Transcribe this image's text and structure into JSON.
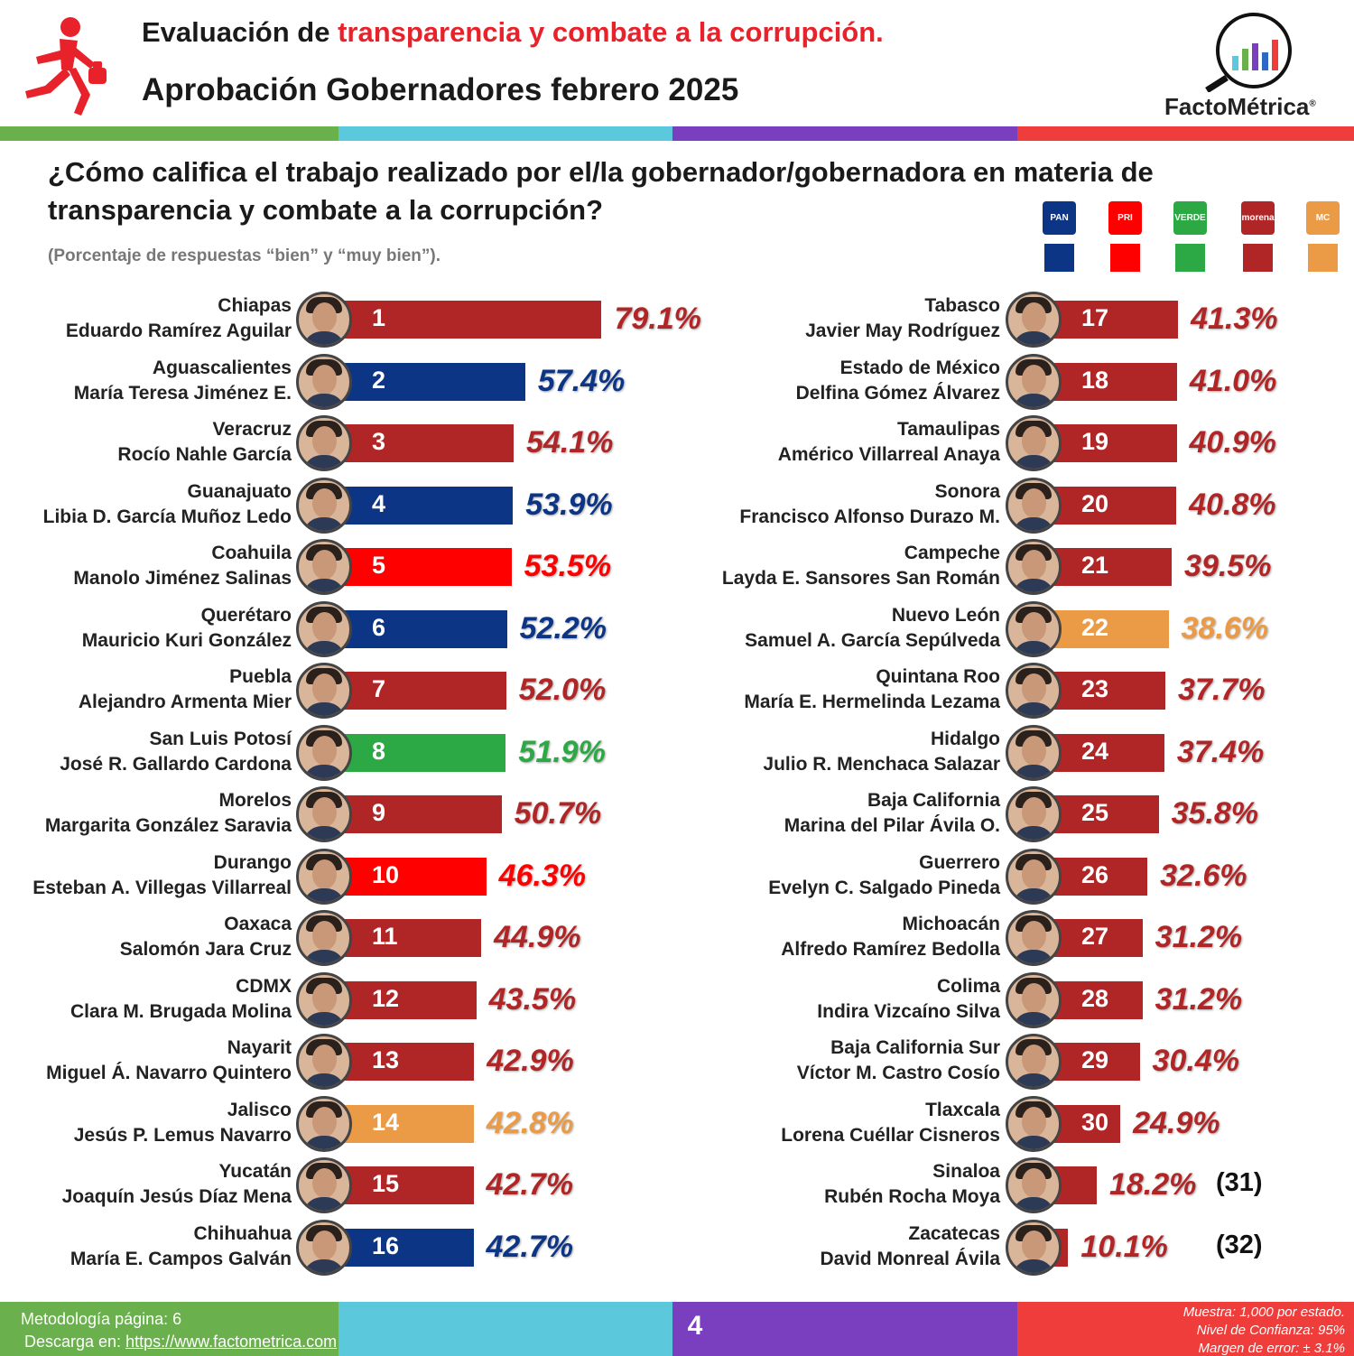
{
  "header": {
    "title_prefix": "Evaluación de ",
    "title_highlight": "transparencia y combate a la corrupción.",
    "subtitle": "Aprobación Gobernadores febrero 2025",
    "brand": "FactoMétrica",
    "brand_mark": "®"
  },
  "question": "¿Cómo califica el trabajo realizado por el/la gobernador/gobernadora en materia de transparencia y combate a la corrupción?",
  "note": "(Porcentaje de respuestas “bien” y “muy bien”).",
  "parties": [
    {
      "logo_text": "PAN",
      "color": "#0d3585"
    },
    {
      "logo_text": "PRI",
      "color": "#fe0000"
    },
    {
      "logo_text": "VERDE",
      "color": "#2ca844"
    },
    {
      "logo_text": "morena",
      "color": "#b02627"
    },
    {
      "logo_text": "MC",
      "color": "#eb9a45"
    }
  ],
  "chart_data": {
    "type": "bar",
    "orientation": "horizontal",
    "unit": "%",
    "items": [
      {
        "rank": "1",
        "state": "Chiapas",
        "governor": "Eduardo Ramírez Aguilar",
        "value": 79.1,
        "label": "79.1%",
        "party": "morena",
        "color": "#b02627"
      },
      {
        "rank": "2",
        "state": "Aguascalientes",
        "governor": "María Teresa Jiménez E.",
        "value": 57.4,
        "label": "57.4%",
        "party": "PAN",
        "color": "#0d3585"
      },
      {
        "rank": "3",
        "state": "Veracruz",
        "governor": "Rocío Nahle García",
        "value": 54.1,
        "label": "54.1%",
        "party": "morena",
        "color": "#b02627"
      },
      {
        "rank": "4",
        "state": "Guanajuato",
        "governor": "Libia D. García Muñoz Ledo",
        "value": 53.9,
        "label": "53.9%",
        "party": "PAN",
        "color": "#0d3585"
      },
      {
        "rank": "5",
        "state": "Coahuila",
        "governor": "Manolo Jiménez Salinas",
        "value": 53.5,
        "label": "53.5%",
        "party": "PRI",
        "color": "#fe0000"
      },
      {
        "rank": "6",
        "state": "Querétaro",
        "governor": "Mauricio Kuri González",
        "value": 52.2,
        "label": "52.2%",
        "party": "PAN",
        "color": "#0d3585"
      },
      {
        "rank": "7",
        "state": "Puebla",
        "governor": "Alejandro Armenta Mier",
        "value": 52.0,
        "label": "52.0%",
        "party": "morena",
        "color": "#b02627"
      },
      {
        "rank": "8",
        "state": "San Luis Potosí",
        "governor": "José R. Gallardo Cardona",
        "value": 51.9,
        "label": "51.9%",
        "party": "VERDE",
        "color": "#2ca844"
      },
      {
        "rank": "9",
        "state": "Morelos",
        "governor": "Margarita González Saravia",
        "value": 50.7,
        "label": "50.7%",
        "party": "morena",
        "color": "#b02627"
      },
      {
        "rank": "10",
        "state": "Durango",
        "governor": "Esteban A. Villegas Villarreal",
        "value": 46.3,
        "label": "46.3%",
        "party": "PRI",
        "color": "#fe0000"
      },
      {
        "rank": "11",
        "state": "Oaxaca",
        "governor": "Salomón Jara Cruz",
        "value": 44.9,
        "label": "44.9%",
        "party": "morena",
        "color": "#b02627"
      },
      {
        "rank": "12",
        "state": "CDMX",
        "governor": "Clara M. Brugada Molina",
        "value": 43.5,
        "label": "43.5%",
        "party": "morena",
        "color": "#b02627"
      },
      {
        "rank": "13",
        "state": "Nayarit",
        "governor": "Miguel Á. Navarro Quintero",
        "value": 42.9,
        "label": "42.9%",
        "party": "morena",
        "color": "#b02627"
      },
      {
        "rank": "14",
        "state": "Jalisco",
        "governor": "Jesús P. Lemus Navarro",
        "value": 42.8,
        "label": "42.8%",
        "party": "MC",
        "color": "#eb9a45"
      },
      {
        "rank": "15",
        "state": "Yucatán",
        "governor": "Joaquín Jesús Díaz Mena",
        "value": 42.7,
        "label": "42.7%",
        "party": "morena",
        "color": "#b02627"
      },
      {
        "rank": "16",
        "state": "Chihuahua",
        "governor": "María E. Campos Galván",
        "value": 42.7,
        "label": "42.7%",
        "party": "PAN",
        "color": "#0d3585"
      },
      {
        "rank": "17",
        "state": "Tabasco",
        "governor": "Javier May Rodríguez",
        "value": 41.3,
        "label": "41.3%",
        "party": "morena",
        "color": "#b02627"
      },
      {
        "rank": "18",
        "state": "Estado de México",
        "governor": "Delfina Gómez Álvarez",
        "value": 41.0,
        "label": "41.0%",
        "party": "morena",
        "color": "#b02627"
      },
      {
        "rank": "19",
        "state": "Tamaulipas",
        "governor": "Américo Villarreal Anaya",
        "value": 40.9,
        "label": "40.9%",
        "party": "morena",
        "color": "#b02627"
      },
      {
        "rank": "20",
        "state": "Sonora",
        "governor": "Francisco Alfonso Durazo M.",
        "value": 40.8,
        "label": "40.8%",
        "party": "morena",
        "color": "#b02627"
      },
      {
        "rank": "21",
        "state": "Campeche",
        "governor": "Layda E. Sansores San Román",
        "value": 39.5,
        "label": "39.5%",
        "party": "morena",
        "color": "#b02627"
      },
      {
        "rank": "22",
        "state": "Nuevo León",
        "governor": "Samuel A. García Sepúlveda",
        "value": 38.6,
        "label": "38.6%",
        "party": "MC",
        "color": "#eb9a45"
      },
      {
        "rank": "23",
        "state": "Quintana Roo",
        "governor": "María E. Hermelinda Lezama",
        "value": 37.7,
        "label": "37.7%",
        "party": "morena",
        "color": "#b02627"
      },
      {
        "rank": "24",
        "state": "Hidalgo",
        "governor": "Julio R. Menchaca Salazar",
        "value": 37.4,
        "label": "37.4%",
        "party": "morena",
        "color": "#b02627"
      },
      {
        "rank": "25",
        "state": "Baja California",
        "governor": "Marina del Pilar Ávila O.",
        "value": 35.8,
        "label": "35.8%",
        "party": "morena",
        "color": "#b02627"
      },
      {
        "rank": "26",
        "state": "Guerrero",
        "governor": "Evelyn C. Salgado Pineda",
        "value": 32.6,
        "label": "32.6%",
        "party": "morena",
        "color": "#b02627"
      },
      {
        "rank": "27",
        "state": "Michoacán",
        "governor": "Alfredo Ramírez Bedolla",
        "value": 31.2,
        "label": "31.2%",
        "party": "morena",
        "color": "#b02627"
      },
      {
        "rank": "28",
        "state": "Colima",
        "governor": "Indira Vizcaíno Silva",
        "value": 31.2,
        "label": "31.2%",
        "party": "morena",
        "color": "#b02627"
      },
      {
        "rank": "29",
        "state": "Baja California Sur",
        "governor": "Víctor M. Castro Cosío",
        "value": 30.4,
        "label": "30.4%",
        "party": "morena",
        "color": "#b02627"
      },
      {
        "rank": "30",
        "state": "Tlaxcala",
        "governor": "Lorena Cuéllar Cisneros",
        "value": 24.9,
        "label": "24.9%",
        "party": "morena",
        "color": "#b02627"
      },
      {
        "rank": "",
        "state": "Sinaloa",
        "governor": "Rubén Rocha Moya",
        "value": 18.2,
        "label": "18.2%",
        "party": "morena",
        "color": "#b02627",
        "extra": "(31)"
      },
      {
        "rank": "",
        "state": "Zacatecas",
        "governor": "David Monreal Ávila",
        "value": 10.1,
        "label": "10.1%",
        "party": "morena",
        "color": "#b02627",
        "extra": "(32)"
      }
    ]
  },
  "footer": {
    "methodology": "Metodología página: 6",
    "download_label": "Descarga en: ",
    "download_link": "https://www.factometrica.com",
    "page_number": "4",
    "sample": "Muestra:  1,000 por estado.",
    "confidence": "Nivel de Confianza: 95%",
    "margin": "Margen de error: ± 3.1%"
  },
  "colors": {
    "stripe_green": "#6ab04c",
    "stripe_cyan": "#5bc8dc",
    "stripe_purple": "#7a3fbf",
    "stripe_red": "#ee3d3a",
    "title_red": "#e8222a"
  }
}
